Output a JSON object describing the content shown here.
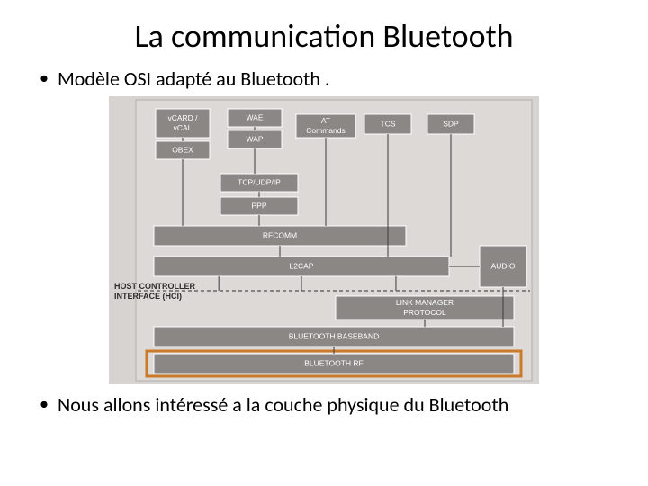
{
  "title": "La communication Bluetooth",
  "bullets": {
    "b1": "Modèle OSI adapté au Bluetooth .",
    "b2": "Nous allons intéressé a la couche physique du Bluetooth"
  },
  "diagram": {
    "background": "#d6d3d0",
    "panel": "#dcd9d6",
    "box_fill": "#8a8784",
    "box_stroke": "#ffffff",
    "line_color": "#3c3c3c",
    "text_color": "#ffffff",
    "hci_color": "#2d2d2d",
    "hci_font": 9,
    "box_font": 8.5,
    "highlight_color": "#cc7a29",
    "highlight_width": 3,
    "labels": {
      "vcard1": "vCARD /",
      "vcard2": "vCAL",
      "obex": "OBEX",
      "wae": "WAE",
      "wap": "WAP",
      "at1": "AT",
      "at2": "Commands",
      "tcp": "TCP/UDP/IP",
      "ppp": "PPP",
      "tcs": "TCS",
      "sdp": "SDP",
      "rfcomm": "RFCOMM",
      "l2cap": "L2CAP",
      "audio": "AUDIO",
      "hci1": "HOST CONTROLLER",
      "hci2": "INTERFACE (HCI)",
      "lmp1": "LINK MANAGER",
      "lmp2": "PROTOCOL",
      "bb": "BLUETOOTH BASEBAND",
      "rf": "BLUETOOTH RF"
    }
  }
}
